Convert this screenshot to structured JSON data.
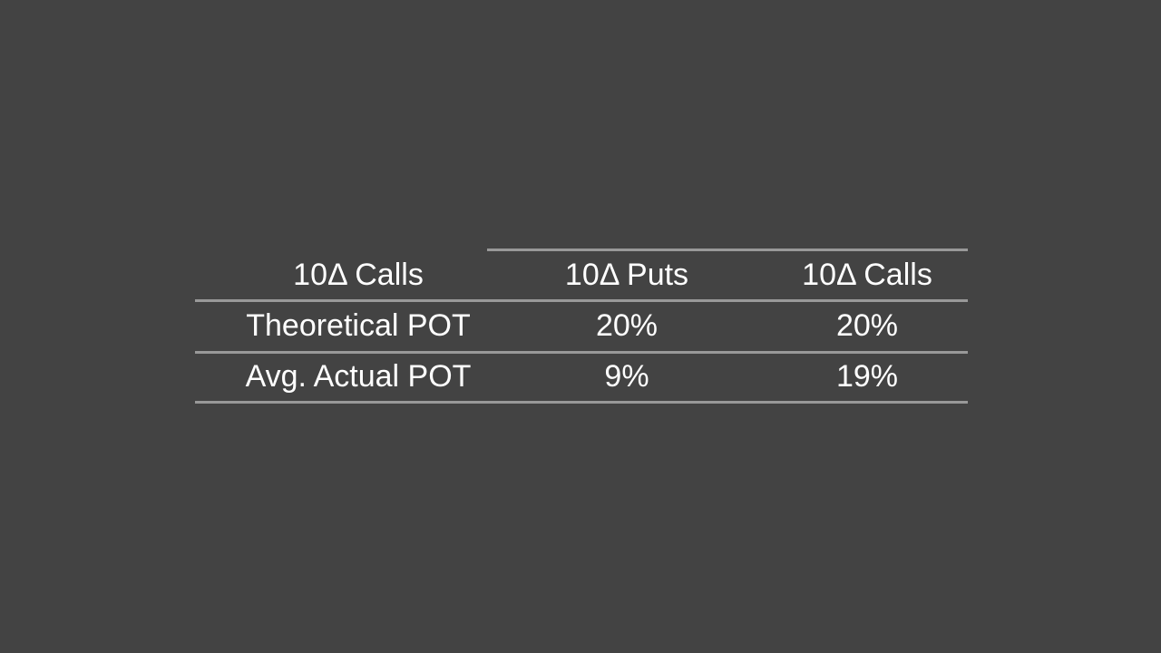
{
  "colors": {
    "background": "#434343",
    "table_line": "#999999",
    "text": "#ffffff"
  },
  "table": {
    "header": [
      "10Δ Calls",
      "10Δ Puts",
      "10Δ Calls"
    ],
    "rows": [
      {
        "label": "Theoretical POT",
        "values": [
          "20%",
          "20%"
        ]
      },
      {
        "label": "Avg. Actual POT",
        "values": [
          "9%",
          "19%"
        ]
      }
    ]
  },
  "chart_data": {
    "type": "table",
    "columns": [
      "10Δ Calls",
      "10Δ Puts",
      "10Δ Calls"
    ],
    "rows": [
      [
        "Theoretical POT",
        "20%",
        "20%"
      ],
      [
        "Avg. Actual POT",
        "9%",
        "19%"
      ]
    ]
  }
}
